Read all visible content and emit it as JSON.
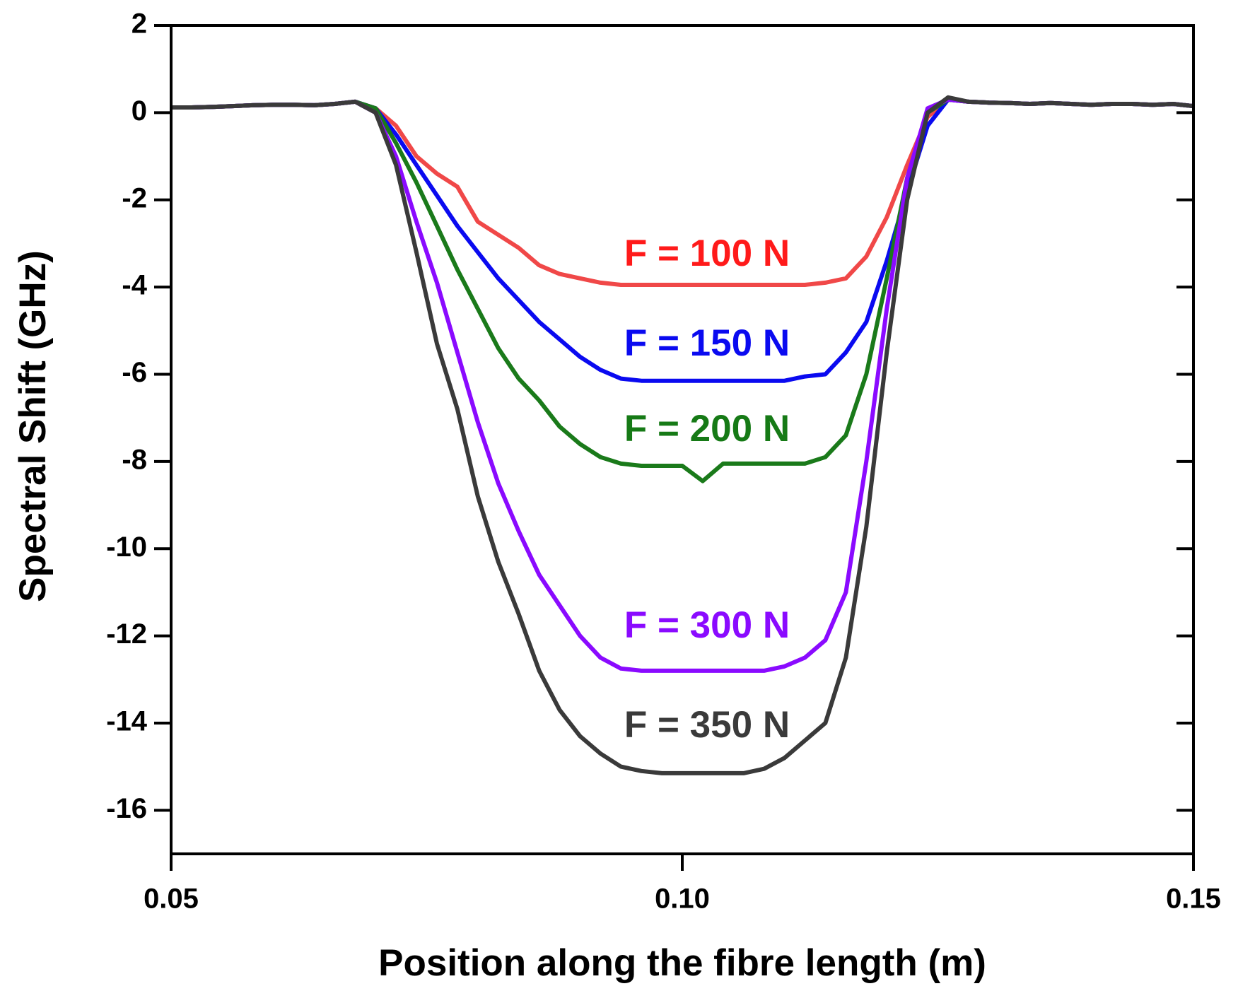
{
  "chart_data": {
    "type": "line",
    "xlabel": "Position along the fibre length (m)",
    "ylabel": "Spectral Shift (GHz)",
    "x": [
      0.05,
      0.052,
      0.054,
      0.056,
      0.058,
      0.06,
      0.062,
      0.064,
      0.066,
      0.068,
      0.07,
      0.072,
      0.074,
      0.076,
      0.078,
      0.08,
      0.082,
      0.084,
      0.086,
      0.088,
      0.09,
      0.092,
      0.094,
      0.096,
      0.098,
      0.1,
      0.102,
      0.104,
      0.106,
      0.108,
      0.11,
      0.112,
      0.114,
      0.116,
      0.118,
      0.12,
      0.122,
      0.124,
      0.126,
      0.128,
      0.13,
      0.132,
      0.134,
      0.136,
      0.138,
      0.14,
      0.142,
      0.144,
      0.146,
      0.148,
      0.15
    ],
    "series": [
      {
        "name": "F = 100 N",
        "color": "#f04848",
        "label_color": "#ff1a1a",
        "values": [
          0.12,
          0.12,
          0.13,
          0.15,
          0.17,
          0.18,
          0.18,
          0.17,
          0.2,
          0.25,
          0.1,
          -0.3,
          -1.0,
          -1.4,
          -1.7,
          -2.5,
          -2.8,
          -3.1,
          -3.5,
          -3.7,
          -3.8,
          -3.9,
          -3.95,
          -3.95,
          -3.95,
          -3.95,
          -3.95,
          -3.95,
          -3.95,
          -3.95,
          -3.95,
          -3.95,
          -3.9,
          -3.8,
          -3.3,
          -2.4,
          -1.2,
          -0.1,
          0.3,
          0.25,
          0.23,
          0.22,
          0.2,
          0.22,
          0.2,
          0.18,
          0.2,
          0.2,
          0.18,
          0.2,
          0.15
        ]
      },
      {
        "name": "F = 150 N",
        "color": "#0a0af0",
        "label_color": "#0a0af0",
        "values": [
          0.12,
          0.12,
          0.13,
          0.15,
          0.17,
          0.18,
          0.18,
          0.17,
          0.2,
          0.25,
          0.1,
          -0.5,
          -1.2,
          -1.9,
          -2.6,
          -3.2,
          -3.8,
          -4.3,
          -4.8,
          -5.2,
          -5.6,
          -5.9,
          -6.1,
          -6.15,
          -6.15,
          -6.15,
          -6.15,
          -6.15,
          -6.15,
          -6.15,
          -6.15,
          -6.05,
          -6.0,
          -5.5,
          -4.8,
          -3.4,
          -1.8,
          -0.3,
          0.3,
          0.25,
          0.23,
          0.22,
          0.2,
          0.22,
          0.2,
          0.18,
          0.2,
          0.2,
          0.18,
          0.2,
          0.15
        ]
      },
      {
        "name": "F = 200 N",
        "color": "#1a7a1a",
        "label_color": "#167a16",
        "values": [
          0.12,
          0.12,
          0.13,
          0.15,
          0.17,
          0.18,
          0.18,
          0.17,
          0.2,
          0.25,
          0.1,
          -0.7,
          -1.6,
          -2.6,
          -3.6,
          -4.5,
          -5.4,
          -6.1,
          -6.6,
          -7.2,
          -7.6,
          -7.9,
          -8.05,
          -8.1,
          -8.1,
          -8.1,
          -8.45,
          -8.05,
          -8.05,
          -8.05,
          -8.05,
          -8.05,
          -7.9,
          -7.4,
          -6.0,
          -3.8,
          -1.5,
          0.0,
          0.3,
          0.25,
          0.23,
          0.22,
          0.2,
          0.22,
          0.2,
          0.18,
          0.2,
          0.2,
          0.18,
          0.2,
          0.15
        ]
      },
      {
        "name": "F = 300 N",
        "color": "#8a0aff",
        "label_color": "#8a0aff",
        "values": [
          0.12,
          0.12,
          0.13,
          0.15,
          0.17,
          0.18,
          0.18,
          0.17,
          0.2,
          0.25,
          0.0,
          -1.0,
          -2.5,
          -3.9,
          -5.5,
          -7.1,
          -8.5,
          -9.6,
          -10.6,
          -11.3,
          -12.0,
          -12.5,
          -12.75,
          -12.8,
          -12.8,
          -12.8,
          -12.8,
          -12.8,
          -12.8,
          -12.8,
          -12.7,
          -12.5,
          -12.1,
          -11.0,
          -8.0,
          -4.5,
          -1.5,
          0.1,
          0.3,
          0.25,
          0.23,
          0.22,
          0.2,
          0.22,
          0.2,
          0.18,
          0.2,
          0.2,
          0.18,
          0.2,
          0.15
        ]
      },
      {
        "name": "F = 350 N",
        "color": "#3a3a3a",
        "label_color": "#3a3a3a",
        "values": [
          0.12,
          0.12,
          0.13,
          0.15,
          0.17,
          0.18,
          0.18,
          0.17,
          0.2,
          0.25,
          0.0,
          -1.2,
          -3.2,
          -5.3,
          -6.8,
          -8.8,
          -10.3,
          -11.5,
          -12.8,
          -13.7,
          -14.3,
          -14.7,
          -15.0,
          -15.1,
          -15.15,
          -15.15,
          -15.15,
          -15.15,
          -15.15,
          -15.05,
          -14.8,
          -14.4,
          -14.0,
          -12.5,
          -9.5,
          -5.5,
          -2.0,
          0.0,
          0.35,
          0.25,
          0.23,
          0.22,
          0.2,
          0.22,
          0.2,
          0.18,
          0.2,
          0.2,
          0.18,
          0.2,
          0.15
        ]
      }
    ],
    "xlim": [
      0.05,
      0.15
    ],
    "xticks": [
      0.05,
      {
        "value": 0.1,
        "label": "0.10"
      },
      0.15
    ],
    "ylim": [
      -17,
      2
    ],
    "yticks": [
      -16,
      -14,
      -12,
      -10,
      -8,
      -6,
      -4,
      -2,
      0,
      2
    ],
    "grid": false
  }
}
